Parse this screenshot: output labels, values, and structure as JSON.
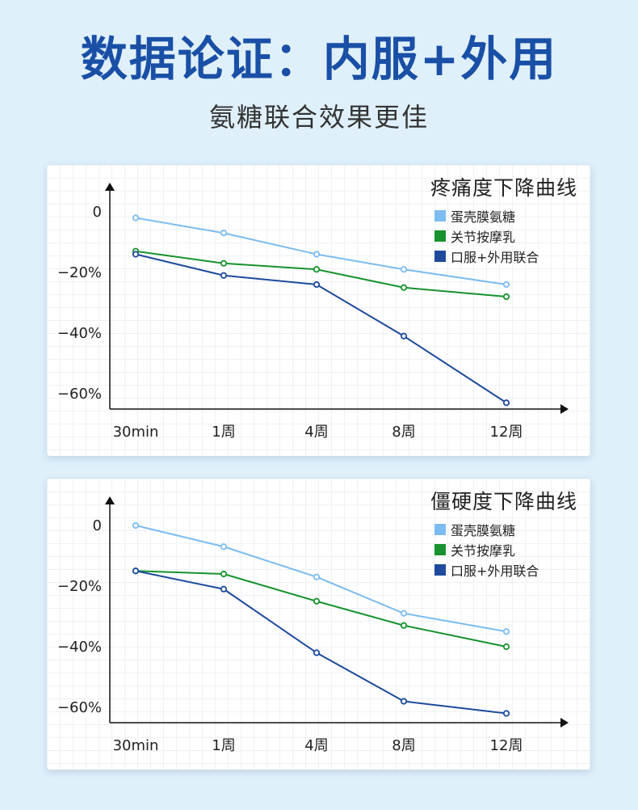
{
  "header": {
    "title": "数据论证：内服+外用",
    "subtitle": "氨糖联合效果更佳"
  },
  "colors": {
    "title": "#1a4fa6",
    "series_light_blue": "#7cbcf0",
    "series_green": "#17922e",
    "series_dark_blue": "#1d4a9c"
  },
  "chart_data": [
    {
      "type": "line",
      "title": "疼痛度下降曲线",
      "categories": [
        "30min",
        "1周",
        "4周",
        "8周",
        "12周"
      ],
      "yticks": [
        "0",
        "−20%",
        "−40%",
        "−60%"
      ],
      "ylim": [
        -65,
        10
      ],
      "grid": true,
      "legend_position": "top-right",
      "series": [
        {
          "name": "蛋壳膜氨糖",
          "color": "#7cbcf0",
          "values": [
            -2,
            -7,
            -14,
            -19,
            -24
          ]
        },
        {
          "name": "关节按摩乳",
          "color": "#17922e",
          "values": [
            -13,
            -17,
            -19,
            -25,
            -28
          ]
        },
        {
          "name": "口服+外用联合",
          "color": "#1d4a9c",
          "values": [
            -14,
            -21,
            -24,
            -41,
            -63
          ]
        }
      ]
    },
    {
      "type": "line",
      "title": "僵硬度下降曲线",
      "categories": [
        "30min",
        "1周",
        "4周",
        "8周",
        "12周"
      ],
      "yticks": [
        "0",
        "−20%",
        "−40%",
        "−60%"
      ],
      "ylim": [
        -65,
        10
      ],
      "grid": true,
      "legend_position": "top-right",
      "series": [
        {
          "name": "蛋壳膜氨糖",
          "color": "#7cbcf0",
          "values": [
            0,
            -7,
            -17,
            -29,
            -35
          ]
        },
        {
          "name": "关节按摩乳",
          "color": "#17922e",
          "values": [
            -15,
            -16,
            -25,
            -33,
            -40
          ]
        },
        {
          "name": "口服+外用联合",
          "color": "#1d4a9c",
          "values": [
            -15,
            -21,
            -42,
            -58,
            -62
          ]
        }
      ]
    }
  ]
}
